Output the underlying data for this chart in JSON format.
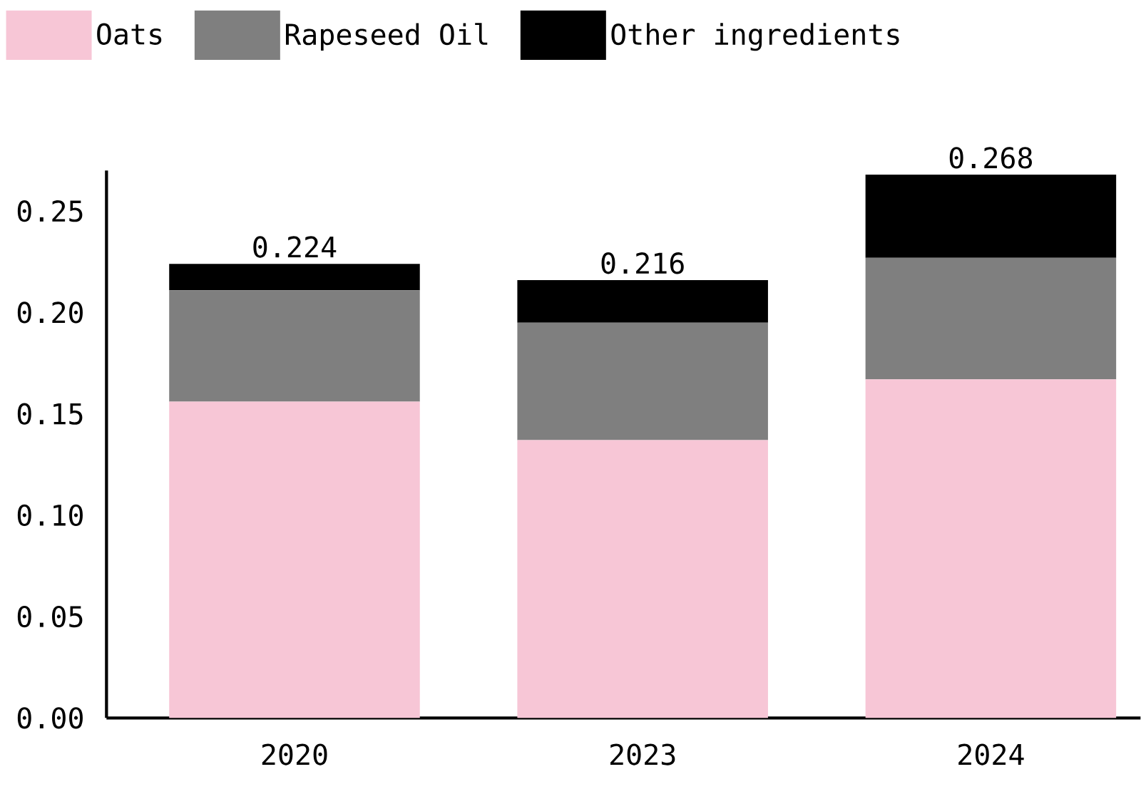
{
  "chart_data": {
    "type": "bar",
    "stacked": true,
    "categories": [
      "2020",
      "2023",
      "2024"
    ],
    "series": [
      {
        "name": "Oats",
        "color": "#f7c6d6",
        "values": [
          0.156,
          0.137,
          0.167
        ]
      },
      {
        "name": "Rapeseed Oil",
        "color": "#7f7f7f",
        "values": [
          0.055,
          0.058,
          0.06
        ]
      },
      {
        "name": "Other ingredients",
        "color": "#000000",
        "values": [
          0.013,
          0.021,
          0.041
        ]
      }
    ],
    "totals": [
      "0.224",
      "0.216",
      "0.268"
    ],
    "ylim": [
      0,
      0.27
    ],
    "yticks": [
      {
        "value": 0,
        "label": "0.00"
      },
      {
        "value": 0.05,
        "label": "0.05"
      },
      {
        "value": 0.1,
        "label": "0.10"
      },
      {
        "value": 0.15,
        "label": "0.15"
      },
      {
        "value": 0.2,
        "label": "0.20"
      },
      {
        "value": 0.25,
        "label": "0.25"
      }
    ],
    "grid": false,
    "legend": "top"
  }
}
